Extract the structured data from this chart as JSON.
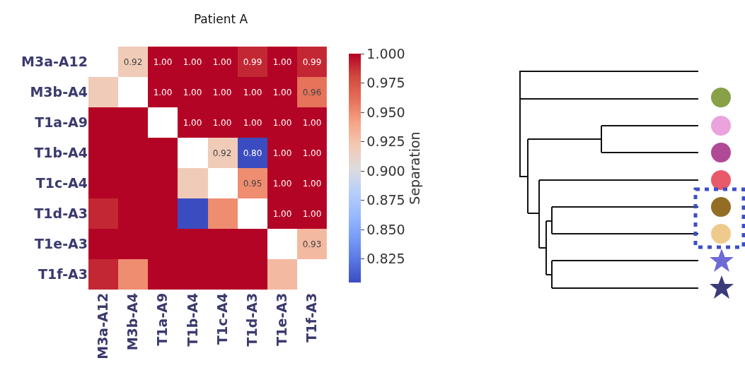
{
  "chart_data": {
    "type": "heatmap",
    "title": "Patient A",
    "clabel": "Separation",
    "categories": [
      "M3a-A12",
      "M3b-A4",
      "T1a-A9",
      "T1b-A4",
      "T1c-A4",
      "T1d-A3",
      "T1e-A3",
      "T1f-A3"
    ],
    "y_categories": [
      "M3a-A12",
      "M3b-A4",
      "T1a-A9",
      "T1b-A4",
      "T1c-A4",
      "T1d-A3",
      "T1e-A3",
      "T1f-A3"
    ],
    "cells": [
      [
        null,
        0.92,
        1.0,
        1.0,
        1.0,
        0.99,
        1.0,
        0.99
      ],
      [
        0.92,
        null,
        1.0,
        1.0,
        1.0,
        1.0,
        1.0,
        0.96
      ],
      [
        1.0,
        1.0,
        null,
        1.0,
        1.0,
        1.0,
        1.0,
        1.0
      ],
      [
        1.0,
        1.0,
        1.0,
        null,
        0.92,
        0.805,
        1.0,
        1.0
      ],
      [
        1.0,
        1.0,
        1.0,
        0.92,
        null,
        0.95,
        1.0,
        1.0
      ],
      [
        0.99,
        1.0,
        1.0,
        0.805,
        0.95,
        null,
        1.0,
        1.0
      ],
      [
        1.0,
        1.0,
        1.0,
        1.0,
        1.0,
        1.0,
        null,
        0.93
      ],
      [
        0.99,
        0.95,
        1.0,
        1.0,
        1.0,
        1.0,
        0.93,
        null
      ]
    ],
    "cell_labels": [
      [
        null,
        "0.92",
        "1.00",
        "1.00",
        "1.00",
        "0.99",
        "1.00",
        "0.99"
      ],
      [
        null,
        null,
        "1.00",
        "1.00",
        "1.00",
        "1.00",
        "1.00",
        "0.96"
      ],
      [
        null,
        null,
        null,
        "1.00",
        "1.00",
        "1.00",
        "1.00",
        "1.00"
      ],
      [
        null,
        null,
        null,
        null,
        "0.92",
        "0.80",
        "1.00",
        "1.00"
      ],
      [
        null,
        null,
        null,
        null,
        null,
        "0.95",
        "1.00",
        "1.00"
      ],
      [
        null,
        null,
        null,
        null,
        null,
        null,
        "1.00",
        "1.00"
      ],
      [
        null,
        null,
        null,
        null,
        null,
        null,
        null,
        "0.93"
      ],
      [
        null,
        null,
        null,
        null,
        null,
        null,
        null,
        null
      ]
    ],
    "clim": [
      0.805,
      1.0
    ],
    "cticks": [
      {
        "value": 0.825,
        "label": "0.825"
      },
      {
        "value": 0.85,
        "label": "0.850"
      },
      {
        "value": 0.875,
        "label": "0.875"
      },
      {
        "value": 0.9,
        "label": "0.900"
      },
      {
        "value": 0.925,
        "label": "0.925"
      },
      {
        "value": 0.95,
        "label": "0.950"
      },
      {
        "value": 0.975,
        "label": "0.975"
      },
      {
        "value": 1.0,
        "label": "1.000"
      }
    ]
  }
}
